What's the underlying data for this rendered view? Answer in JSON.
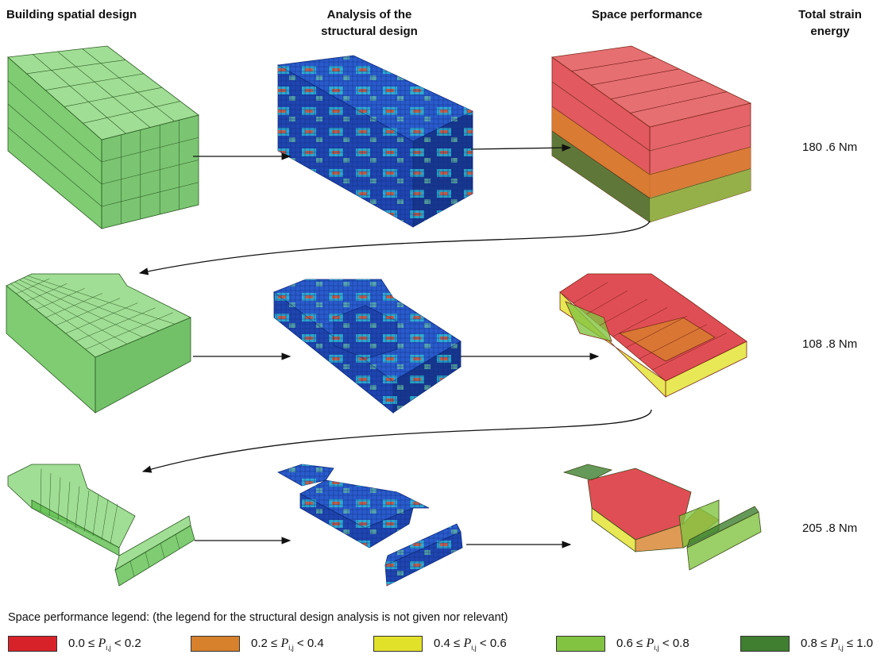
{
  "headers": {
    "col1": "Building spatial design",
    "col2_line1": "Analysis of the",
    "col2_line2": "structural design",
    "col3": "Space performance",
    "col4_line1": "Total strain",
    "col4_line2": "energy"
  },
  "energies": [
    "180 .6  Nm",
    "108 .8  Nm",
    "205 .8  Nm"
  ],
  "legend": {
    "title": "Space performance legend: (the legend for the structural design analysis is not given nor relevant)",
    "variable": "P",
    "subscript": "i,j",
    "items": [
      {
        "low": "0.0",
        "op1": "≤",
        "op2": "<",
        "high": "0.2",
        "color": "#d8222a"
      },
      {
        "low": "0.2",
        "op1": "≤",
        "op2": "<",
        "high": "0.4",
        "color": "#d7812c"
      },
      {
        "low": "0.4",
        "op1": "≤",
        "op2": "<",
        "high": "0.6",
        "color": "#e2e12a"
      },
      {
        "low": "0.6",
        "op1": "≤",
        "op2": "<",
        "high": "0.8",
        "color": "#82c341"
      },
      {
        "low": "0.8",
        "op1": "≤",
        "op2": "≤",
        "high": "1.0",
        "color": "#3f7f2f"
      }
    ]
  },
  "palette": {
    "spatial_green": "#6dc25a",
    "fem_blue": "#1f45b0",
    "fem_cyan": "#2fc6d6",
    "fem_red": "#e04a2a"
  }
}
